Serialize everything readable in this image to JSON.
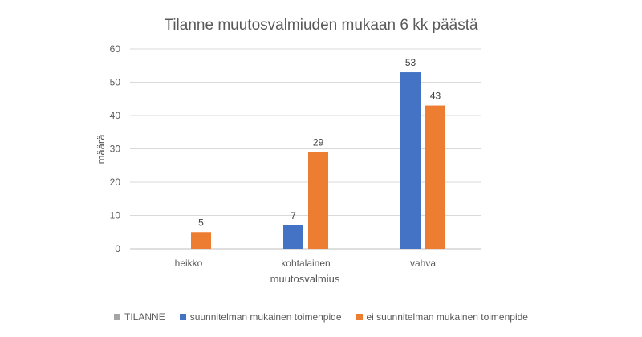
{
  "chart_data": {
    "type": "bar",
    "title": "Tilanne muutosvalmiuden mukaan 6 kk päästä",
    "xlabel": "muutosvalmius",
    "ylabel": "määrä",
    "ylim": [
      0,
      60
    ],
    "yticks": [
      0,
      10,
      20,
      30,
      40,
      50,
      60
    ],
    "grid": true,
    "legend_position": "bottom",
    "categories": [
      "heikko",
      "kohtalainen",
      "vahva"
    ],
    "series": [
      {
        "name": "TILANNE",
        "color": "#a5a5a5",
        "values": [
          null,
          null,
          null
        ]
      },
      {
        "name": "suunnitelman mukainen toimenpide",
        "color": "#4472c4",
        "values": [
          null,
          7,
          53
        ]
      },
      {
        "name": "ei suunnitelman mukainen toimenpide",
        "color": "#ed7d31",
        "values": [
          5,
          29,
          43
        ]
      }
    ]
  }
}
